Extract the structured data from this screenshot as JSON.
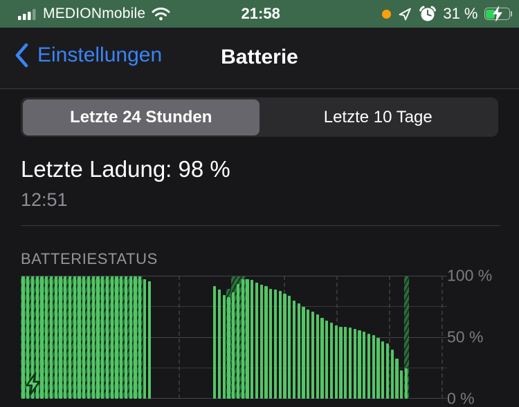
{
  "status_bar": {
    "carrier": "MEDIONmobile",
    "time": "21:58",
    "battery_percent": "31 %",
    "colors": {
      "background": "#3c694b",
      "recording_dot": "#ff9f0a",
      "battery_fill": "#30d158"
    }
  },
  "nav": {
    "back_label": "Einstellungen",
    "title": "Batterie",
    "accent_color": "#3b84f7"
  },
  "segmented": {
    "options": [
      "Letzte 24 Stunden",
      "Letzte 10 Tage"
    ],
    "selected_index": 0
  },
  "last_charge": {
    "title": "Letzte Ladung: 98 %",
    "time": "12:51"
  },
  "chart_data": {
    "type": "bar",
    "title": "BATTERIESTATUS",
    "ylim": [
      0,
      100
    ],
    "y_ticks": [
      "100 %",
      "50 %",
      "0 %"
    ],
    "unit": "%",
    "bar_color": "#54c566",
    "charging_hatch_color": "#2d6e3d",
    "grid": {
      "h_lines_pct": [
        0,
        25,
        50,
        75,
        100
      ],
      "major_pct": [
        0,
        50,
        100
      ],
      "v_gridlines": 9
    },
    "legend_icon": "charging-bolt",
    "note": "v = battery level percent per time slot (t of 88 slots over 24 h), h = charging hatch height percent (0 = not charging)",
    "bars": [
      {
        "t": 0,
        "v": 100,
        "h": 100
      },
      {
        "t": 1,
        "v": 100,
        "h": 100
      },
      {
        "t": 2,
        "v": 100,
        "h": 100
      },
      {
        "t": 3,
        "v": 100,
        "h": 100
      },
      {
        "t": 4,
        "v": 100,
        "h": 100
      },
      {
        "t": 5,
        "v": 100,
        "h": 100
      },
      {
        "t": 6,
        "v": 100,
        "h": 100
      },
      {
        "t": 7,
        "v": 100,
        "h": 100
      },
      {
        "t": 8,
        "v": 100,
        "h": 100
      },
      {
        "t": 9,
        "v": 100,
        "h": 100
      },
      {
        "t": 10,
        "v": 100,
        "h": 100
      },
      {
        "t": 11,
        "v": 100,
        "h": 100
      },
      {
        "t": 12,
        "v": 100,
        "h": 100
      },
      {
        "t": 13,
        "v": 100,
        "h": 100
      },
      {
        "t": 14,
        "v": 100,
        "h": 100
      },
      {
        "t": 15,
        "v": 100,
        "h": 100
      },
      {
        "t": 16,
        "v": 100,
        "h": 100
      },
      {
        "t": 17,
        "v": 100,
        "h": 100
      },
      {
        "t": 18,
        "v": 100,
        "h": 100
      },
      {
        "t": 19,
        "v": 100,
        "h": 100
      },
      {
        "t": 20,
        "v": 100,
        "h": 100
      },
      {
        "t": 21,
        "v": 100,
        "h": 100
      },
      {
        "t": 22,
        "v": 100,
        "h": 100
      },
      {
        "t": 23,
        "v": 100,
        "h": 100
      },
      {
        "t": 24,
        "v": 100,
        "h": 100
      },
      {
        "t": 25,
        "v": 100,
        "h": 100
      },
      {
        "t": 26,
        "v": 98,
        "h": 0
      },
      {
        "t": 27,
        "v": 96,
        "h": 0
      },
      {
        "t": 41,
        "v": 92,
        "h": 0
      },
      {
        "t": 42,
        "v": 89,
        "h": 0
      },
      {
        "t": 43,
        "v": 85,
        "h": 0
      },
      {
        "t": 44,
        "v": 83,
        "h": 90
      },
      {
        "t": 45,
        "v": 87,
        "h": 100
      },
      {
        "t": 46,
        "v": 94,
        "h": 100
      },
      {
        "t": 47,
        "v": 98,
        "h": 100
      },
      {
        "t": 48,
        "v": 98,
        "h": 0
      },
      {
        "t": 49,
        "v": 97,
        "h": 0
      },
      {
        "t": 50,
        "v": 95,
        "h": 0
      },
      {
        "t": 51,
        "v": 93,
        "h": 0
      },
      {
        "t": 52,
        "v": 92,
        "h": 0
      },
      {
        "t": 53,
        "v": 90,
        "h": 0
      },
      {
        "t": 54,
        "v": 89,
        "h": 0
      },
      {
        "t": 55,
        "v": 88,
        "h": 0
      },
      {
        "t": 56,
        "v": 86,
        "h": 0
      },
      {
        "t": 57,
        "v": 84,
        "h": 0
      },
      {
        "t": 58,
        "v": 80,
        "h": 0
      },
      {
        "t": 59,
        "v": 78,
        "h": 0
      },
      {
        "t": 60,
        "v": 75,
        "h": 0
      },
      {
        "t": 61,
        "v": 73,
        "h": 0
      },
      {
        "t": 62,
        "v": 71,
        "h": 0
      },
      {
        "t": 63,
        "v": 69,
        "h": 0
      },
      {
        "t": 64,
        "v": 66,
        "h": 0
      },
      {
        "t": 65,
        "v": 64,
        "h": 0
      },
      {
        "t": 66,
        "v": 62,
        "h": 0
      },
      {
        "t": 67,
        "v": 60,
        "h": 0
      },
      {
        "t": 68,
        "v": 59,
        "h": 0
      },
      {
        "t": 69,
        "v": 59,
        "h": 0
      },
      {
        "t": 70,
        "v": 58,
        "h": 0
      },
      {
        "t": 71,
        "v": 57,
        "h": 0
      },
      {
        "t": 72,
        "v": 56,
        "h": 0
      },
      {
        "t": 73,
        "v": 55,
        "h": 0
      },
      {
        "t": 74,
        "v": 53,
        "h": 0
      },
      {
        "t": 75,
        "v": 52,
        "h": 0
      },
      {
        "t": 76,
        "v": 50,
        "h": 0
      },
      {
        "t": 77,
        "v": 47,
        "h": 0
      },
      {
        "t": 78,
        "v": 45,
        "h": 0
      },
      {
        "t": 79,
        "v": 40,
        "h": 0
      },
      {
        "t": 80,
        "v": 33,
        "h": 0
      },
      {
        "t": 81,
        "v": 23,
        "h": 0
      },
      {
        "t": 82,
        "v": 25,
        "h": 100
      }
    ]
  }
}
